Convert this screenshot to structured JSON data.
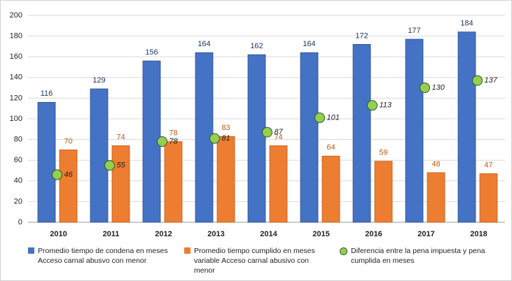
{
  "chart_data": {
    "type": "bar",
    "categories": [
      "2010",
      "2011",
      "2012",
      "2013",
      "2014",
      "2015",
      "2016",
      "2017",
      "2018"
    ],
    "series": [
      {
        "name": "Promedio tiempo de condena en meses Acceso carnal abusvo con menor",
        "color": "#4472c4",
        "values": [
          116,
          129,
          156,
          164,
          162,
          164,
          172,
          177,
          184
        ]
      },
      {
        "name": "Promedio tiempo cumplido en meses variable Acceso carnal abusivo con menor",
        "color": "#ed7d31",
        "values": [
          70,
          74,
          78,
          83,
          74,
          64,
          59,
          48,
          47
        ]
      },
      {
        "name": "Diferencia entre la pena impuesta y pena cumplida en meses",
        "color": "#92d050",
        "kind": "point",
        "values": [
          46,
          55,
          78,
          81,
          87,
          101,
          113,
          130,
          137
        ]
      }
    ],
    "ylim": [
      0,
      200
    ],
    "yticks": [
      0,
      20,
      40,
      60,
      80,
      100,
      120,
      140,
      160,
      180,
      200
    ],
    "grid": true
  }
}
